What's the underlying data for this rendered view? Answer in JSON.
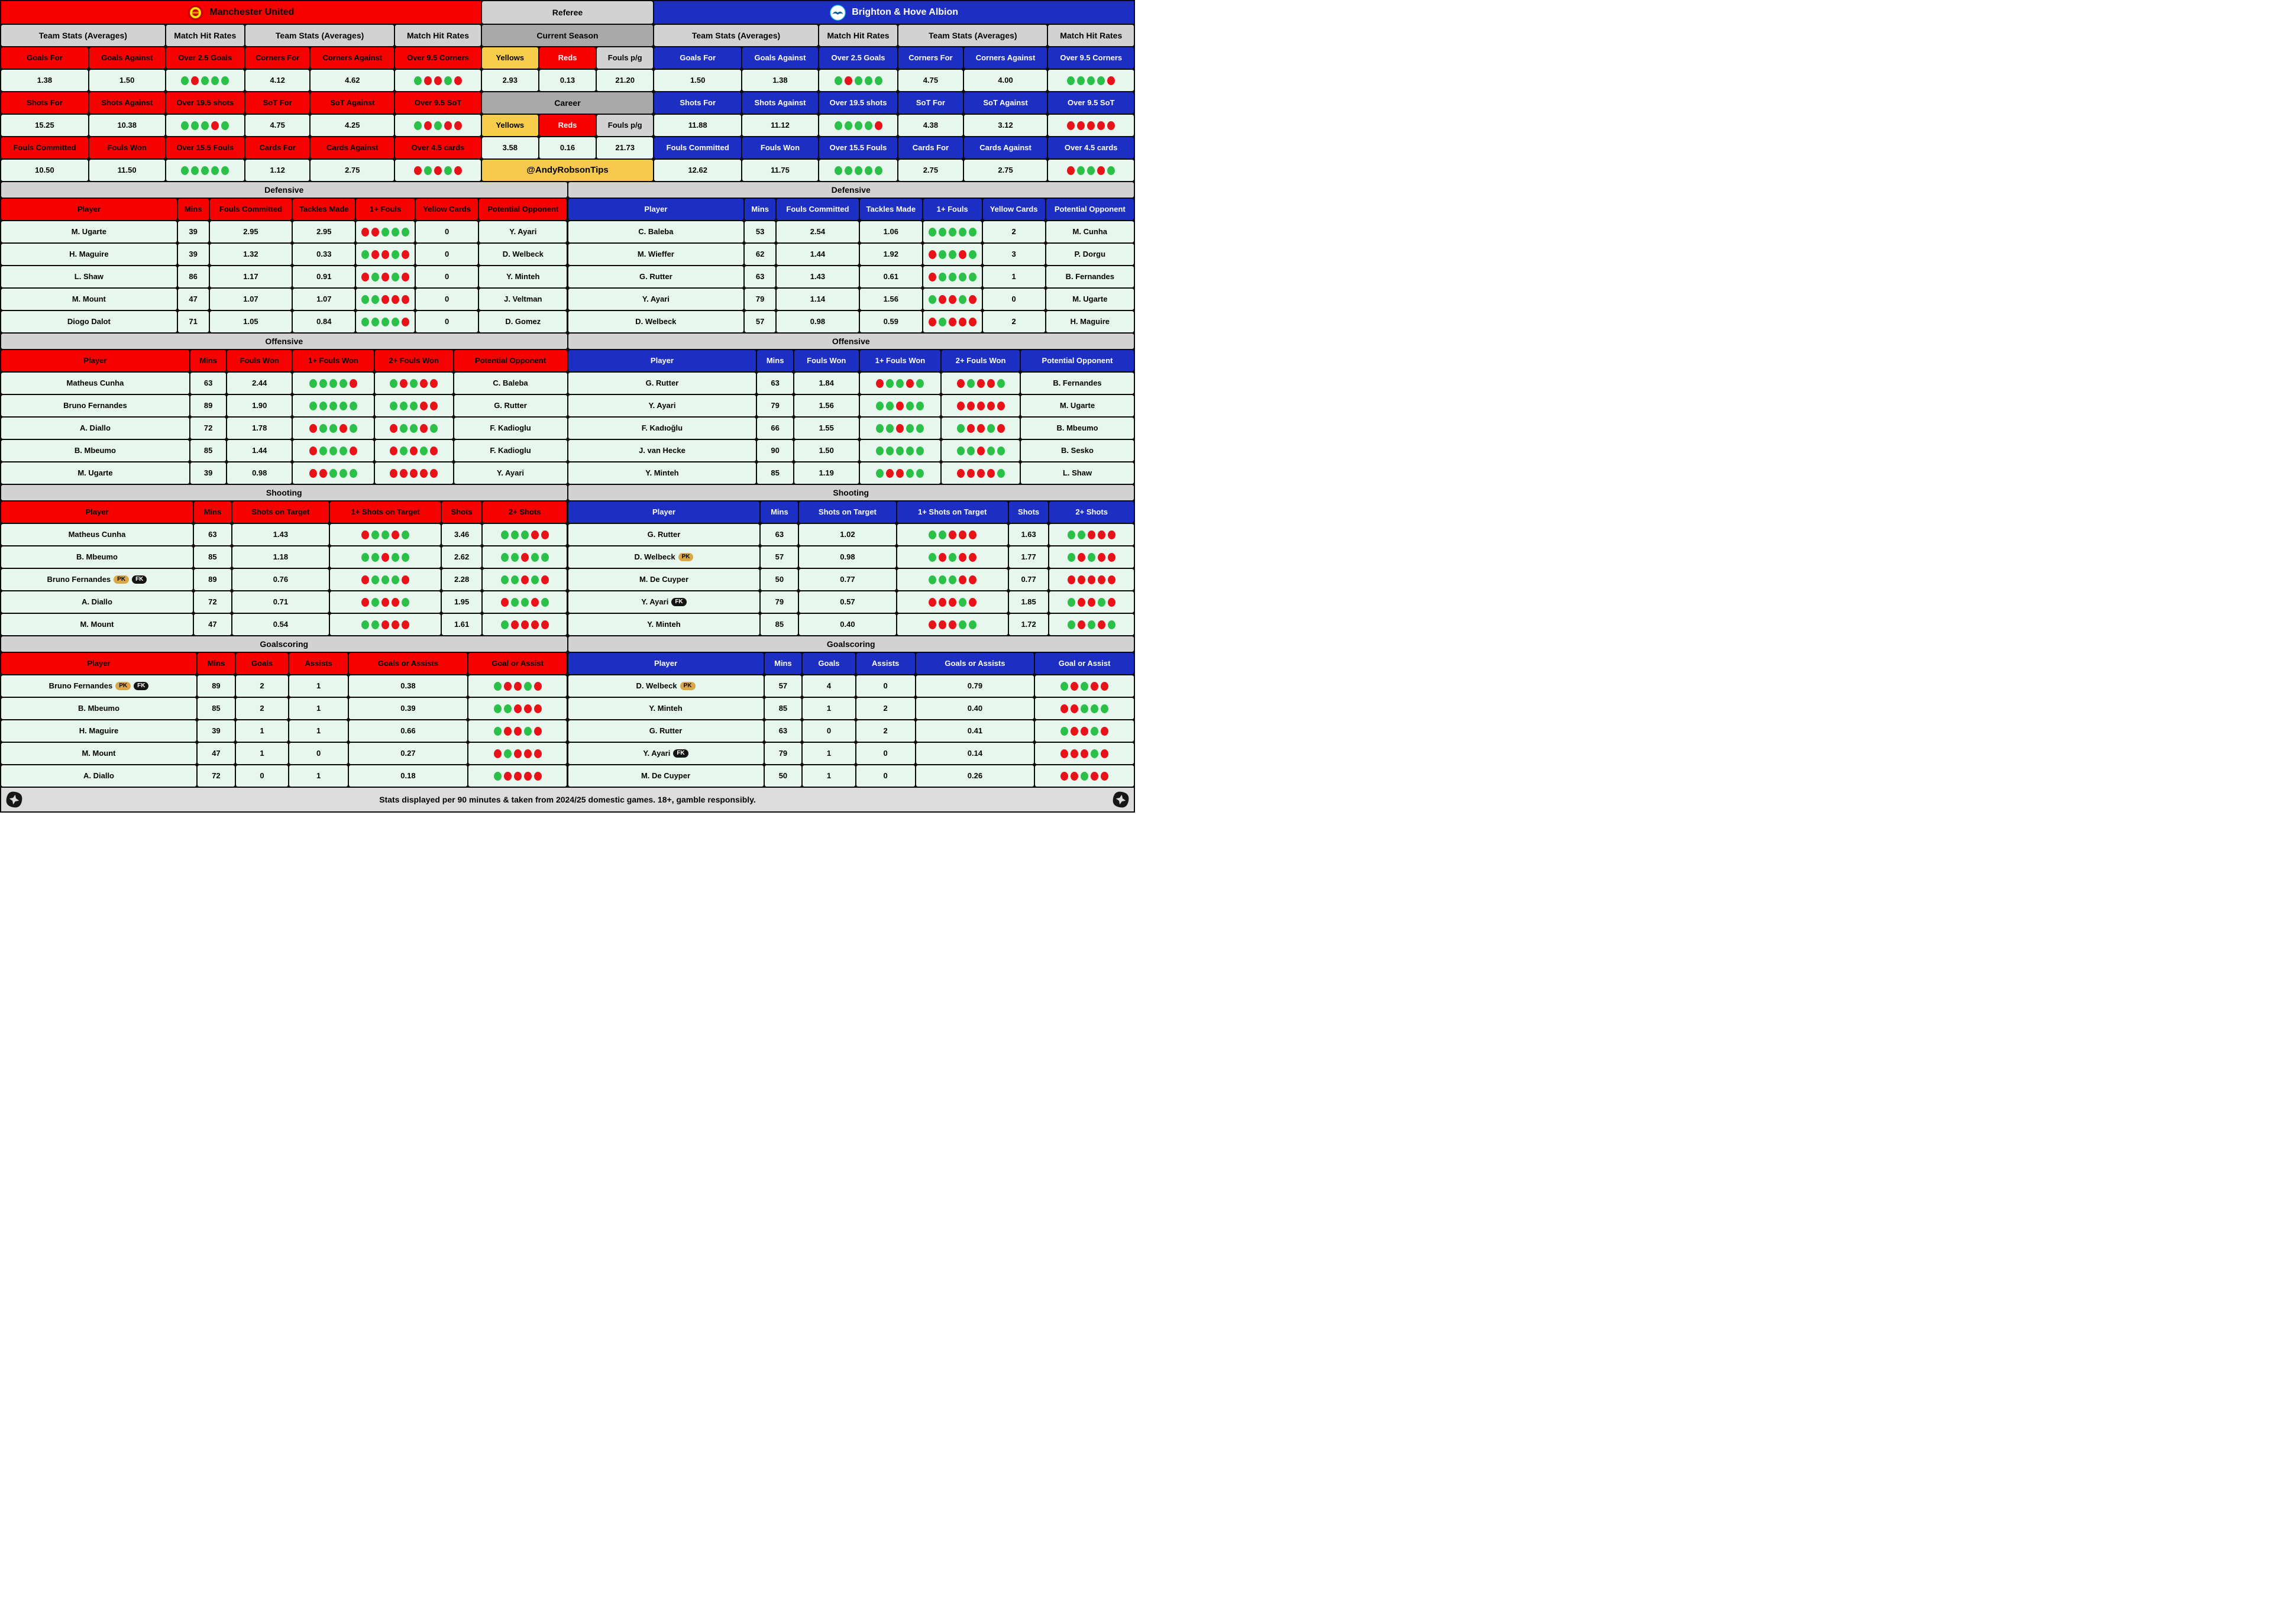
{
  "colors": {
    "home_accent": "#f70000",
    "home_header_text": "#000000",
    "away_accent": "#1c2fc2",
    "away_header_text": "#ffffff",
    "dot_green": "#2bc149",
    "dot_red": "#e91219",
    "cell_mint": "#e8f7ee",
    "section_gray": "#d2d2d2",
    "ref_dark_gray": "#a9a9a9",
    "yellow": "#f7ce4b",
    "handle_yellow": "#f7c94c"
  },
  "referee": {
    "title": "Referee",
    "handle": "@AndyRobsonTips",
    "sections": [
      {
        "title": "Current Season",
        "cols": [
          "Yellows",
          "Reds",
          "Fouls p/g"
        ],
        "values": [
          "2.93",
          "0.13",
          "21.20"
        ]
      },
      {
        "title": "Career",
        "cols": [
          "Yellows",
          "Reds",
          "Fouls p/g"
        ],
        "values": [
          "3.58",
          "0.16",
          "21.73"
        ]
      }
    ]
  },
  "home": {
    "name": "Manchester United",
    "crest": "manchester-united-crest",
    "band_headers": [
      "Team Stats (Averages)",
      "Match Hit Rates",
      "Team Stats (Averages)",
      "Match Hit Rates"
    ],
    "stat_rows": [
      {
        "labels": [
          "Goals For",
          "Goals Against",
          "Over 2.5 Goals",
          "Corners For",
          "Corners Against",
          "Over 9.5 Corners"
        ],
        "values": [
          "1.38",
          "1.50",
          "dots:GRGGG",
          "4.12",
          "4.62",
          "dots:GRRGR"
        ]
      },
      {
        "labels": [
          "Shots For",
          "Shots Against",
          "Over 19.5 shots",
          "SoT For",
          "SoT Against",
          "Over 9.5 SoT"
        ],
        "values": [
          "15.25",
          "10.38",
          "dots:GGGRG",
          "4.75",
          "4.25",
          "dots:GRGRR"
        ]
      },
      {
        "labels": [
          "Fouls Committed",
          "Fouls Won",
          "Over 15.5 Fouls",
          "Cards For",
          "Cards Against",
          "Over 4.5 cards"
        ],
        "values": [
          "10.50",
          "11.50",
          "dots:GGGGG",
          "1.12",
          "2.75",
          "dots:RGRGR"
        ]
      }
    ],
    "sections": [
      {
        "title": "Defensive",
        "layout": "defensive",
        "columns": [
          "Player",
          "Mins",
          "Fouls Committed",
          "Tackles Made",
          "1+ Fouls",
          "Yellow Cards",
          "Potential Opponent"
        ],
        "rows": [
          {
            "player": "M. Ugarte",
            "badges": [],
            "cells": [
              "39",
              "2.95",
              "2.95",
              "dots:RRGGG",
              "0",
              "Y. Ayari"
            ]
          },
          {
            "player": "H. Maguire",
            "badges": [],
            "cells": [
              "39",
              "1.32",
              "0.33",
              "dots:GRRGR",
              "0",
              "D. Welbeck"
            ]
          },
          {
            "player": "L. Shaw",
            "badges": [],
            "cells": [
              "86",
              "1.17",
              "0.91",
              "dots:RGRGR",
              "0",
              "Y. Minteh"
            ]
          },
          {
            "player": "M. Mount",
            "badges": [],
            "cells": [
              "47",
              "1.07",
              "1.07",
              "dots:GGRRR",
              "0",
              "J. Veltman"
            ]
          },
          {
            "player": "Diogo Dalot",
            "badges": [],
            "cells": [
              "71",
              "1.05",
              "0.84",
              "dots:GGGGR",
              "0",
              "D. Gomez"
            ]
          }
        ]
      },
      {
        "title": "Offensive",
        "layout": "offensive",
        "columns": [
          "Player",
          "Mins",
          "Fouls Won",
          "1+ Fouls Won",
          "2+ Fouls Won",
          "Potential Opponent"
        ],
        "rows": [
          {
            "player": "Matheus Cunha",
            "badges": [],
            "cells": [
              "63",
              "2.44",
              "dots:GGGGR",
              "dots:GRGRR",
              "C. Baleba"
            ]
          },
          {
            "player": "Bruno Fernandes",
            "badges": [],
            "cells": [
              "89",
              "1.90",
              "dots:GGGGG",
              "dots:GGGRR",
              "G. Rutter"
            ]
          },
          {
            "player": "A. Diallo",
            "badges": [],
            "cells": [
              "72",
              "1.78",
              "dots:RGGRG",
              "dots:RGGRG",
              "F. Kadioglu"
            ]
          },
          {
            "player": "B. Mbeumo",
            "badges": [],
            "cells": [
              "85",
              "1.44",
              "dots:RGGGR",
              "dots:RGRGR",
              "F. Kadioglu"
            ]
          },
          {
            "player": "M. Ugarte",
            "badges": [],
            "cells": [
              "39",
              "0.98",
              "dots:RRGGG",
              "dots:RRRRR",
              "Y. Ayari"
            ]
          }
        ]
      },
      {
        "title": "Shooting",
        "layout": "shooting",
        "columns": [
          "Player",
          "Mins",
          "Shots on Target",
          "1+ Shots on Target",
          "Shots",
          "2+ Shots"
        ],
        "rows": [
          {
            "player": "Matheus Cunha",
            "badges": [],
            "cells": [
              "63",
              "1.43",
              "dots:RGGRG",
              "3.46",
              "dots:GGGRR"
            ]
          },
          {
            "player": "B. Mbeumo",
            "badges": [],
            "cells": [
              "85",
              "1.18",
              "dots:GGRGG",
              "2.62",
              "dots:GGRGG"
            ]
          },
          {
            "player": "Bruno Fernandes",
            "badges": [
              "PK",
              "FK"
            ],
            "cells": [
              "89",
              "0.76",
              "dots:RGGGR",
              "2.28",
              "dots:GGRGR"
            ]
          },
          {
            "player": "A. Diallo",
            "badges": [],
            "cells": [
              "72",
              "0.71",
              "dots:RGRRG",
              "1.95",
              "dots:RGGRG"
            ]
          },
          {
            "player": "M. Mount",
            "badges": [],
            "cells": [
              "47",
              "0.54",
              "dots:GGRRR",
              "1.61",
              "dots:GRRRR"
            ]
          }
        ]
      },
      {
        "title": "Goalscoring",
        "layout": "goalscoring",
        "columns": [
          "Player",
          "Mins",
          "Goals",
          "Assists",
          "Goals or Assists",
          "Goal or Assist"
        ],
        "rows": [
          {
            "player": "Bruno Fernandes",
            "badges": [
              "PK",
              "FK"
            ],
            "cells": [
              "89",
              "2",
              "1",
              "0.38",
              "dots:GRRGR"
            ]
          },
          {
            "player": "B. Mbeumo",
            "badges": [],
            "cells": [
              "85",
              "2",
              "1",
              "0.39",
              "dots:GGRRR"
            ]
          },
          {
            "player": "H. Maguire",
            "badges": [],
            "cells": [
              "39",
              "1",
              "1",
              "0.66",
              "dots:GRRGR"
            ]
          },
          {
            "player": "M. Mount",
            "badges": [],
            "cells": [
              "47",
              "1",
              "0",
              "0.27",
              "dots:RGRRR"
            ]
          },
          {
            "player": "A. Diallo",
            "badges": [],
            "cells": [
              "72",
              "0",
              "1",
              "0.18",
              "dots:GRRRR"
            ]
          }
        ]
      }
    ]
  },
  "away": {
    "name": "Brighton & Hove Albion",
    "crest": "brighton-crest",
    "band_headers": [
      "Team Stats (Averages)",
      "Match Hit Rates",
      "Team Stats (Averages)",
      "Match Hit Rates"
    ],
    "stat_rows": [
      {
        "labels": [
          "Goals For",
          "Goals Against",
          "Over 2.5 Goals",
          "Corners For",
          "Corners Against",
          "Over 9.5 Corners"
        ],
        "values": [
          "1.50",
          "1.38",
          "dots:GRGGG",
          "4.75",
          "4.00",
          "dots:GGGGR"
        ]
      },
      {
        "labels": [
          "Shots For",
          "Shots Against",
          "Over 19.5 shots",
          "SoT For",
          "SoT Against",
          "Over 9.5 SoT"
        ],
        "values": [
          "11.88",
          "11.12",
          "dots:GGGGR",
          "4.38",
          "3.12",
          "dots:RRRRR"
        ]
      },
      {
        "labels": [
          "Fouls Committed",
          "Fouls Won",
          "Over 15.5 Fouls",
          "Cards For",
          "Cards Against",
          "Over 4.5 cards"
        ],
        "values": [
          "12.62",
          "11.75",
          "dots:GGGGG",
          "2.75",
          "2.75",
          "dots:RGGRG"
        ]
      }
    ],
    "sections": [
      {
        "title": "Defensive",
        "layout": "defensive",
        "columns": [
          "Player",
          "Mins",
          "Fouls Committed",
          "Tackles Made",
          "1+ Fouls",
          "Yellow Cards",
          "Potential Opponent"
        ],
        "rows": [
          {
            "player": "C. Baleba",
            "badges": [],
            "cells": [
              "53",
              "2.54",
              "1.06",
              "dots:GGGGG",
              "2",
              "M. Cunha"
            ]
          },
          {
            "player": "M. Wieffer",
            "badges": [],
            "cells": [
              "62",
              "1.44",
              "1.92",
              "dots:RGGRG",
              "3",
              "P. Dorgu"
            ]
          },
          {
            "player": "G. Rutter",
            "badges": [],
            "cells": [
              "63",
              "1.43",
              "0.61",
              "dots:RGGGG",
              "1",
              "B. Fernandes"
            ]
          },
          {
            "player": "Y. Ayari",
            "badges": [],
            "cells": [
              "79",
              "1.14",
              "1.56",
              "dots:GRRGR",
              "0",
              "M. Ugarte"
            ]
          },
          {
            "player": "D. Welbeck",
            "badges": [],
            "cells": [
              "57",
              "0.98",
              "0.59",
              "dots:RGRRR",
              "2",
              "H. Maguire"
            ]
          }
        ]
      },
      {
        "title": "Offensive",
        "layout": "offensive",
        "columns": [
          "Player",
          "Mins",
          "Fouls Won",
          "1+ Fouls Won",
          "2+ Fouls Won",
          "Potential Opponent"
        ],
        "rows": [
          {
            "player": "G. Rutter",
            "badges": [],
            "cells": [
              "63",
              "1.84",
              "dots:RGGRG",
              "dots:RGRRG",
              "B. Fernandes"
            ]
          },
          {
            "player": "Y. Ayari",
            "badges": [],
            "cells": [
              "79",
              "1.56",
              "dots:GGRGG",
              "dots:RRRRR",
              "M. Ugarte"
            ]
          },
          {
            "player": "F. Kadıoğlu",
            "badges": [],
            "cells": [
              "66",
              "1.55",
              "dots:GGRGG",
              "dots:GRRGR",
              "B. Mbeumo"
            ]
          },
          {
            "player": "J. van Hecke",
            "badges": [],
            "cells": [
              "90",
              "1.50",
              "dots:GGGGG",
              "dots:GGRGG",
              "B. Sesko"
            ]
          },
          {
            "player": "Y. Minteh",
            "badges": [],
            "cells": [
              "85",
              "1.19",
              "dots:GRRGG",
              "dots:RRRRG",
              "L. Shaw"
            ]
          }
        ]
      },
      {
        "title": "Shooting",
        "layout": "shooting",
        "columns": [
          "Player",
          "Mins",
          "Shots on Target",
          "1+ Shots on Target",
          "Shots",
          "2+ Shots"
        ],
        "rows": [
          {
            "player": "G. Rutter",
            "badges": [],
            "cells": [
              "63",
              "1.02",
              "dots:GGRRR",
              "1.63",
              "dots:GGRRR"
            ]
          },
          {
            "player": "D. Welbeck",
            "badges": [
              "PK"
            ],
            "cells": [
              "57",
              "0.98",
              "dots:GRGRR",
              "1.77",
              "dots:GRGRR"
            ]
          },
          {
            "player": "M. De Cuyper",
            "badges": [],
            "cells": [
              "50",
              "0.77",
              "dots:GGGRR",
              "0.77",
              "dots:RRRRR"
            ]
          },
          {
            "player": "Y. Ayari",
            "badges": [
              "FK"
            ],
            "cells": [
              "79",
              "0.57",
              "dots:RRRGR",
              "1.85",
              "dots:GRRGR"
            ]
          },
          {
            "player": "Y. Minteh",
            "badges": [],
            "cells": [
              "85",
              "0.40",
              "dots:RRRGG",
              "1.72",
              "dots:GRGRG"
            ]
          }
        ]
      },
      {
        "title": "Goalscoring",
        "layout": "goalscoring",
        "columns": [
          "Player",
          "Mins",
          "Goals",
          "Assists",
          "Goals or Assists",
          "Goal or Assist"
        ],
        "rows": [
          {
            "player": "D. Welbeck",
            "badges": [
              "PK"
            ],
            "cells": [
              "57",
              "4",
              "0",
              "0.79",
              "dots:GRGRR"
            ]
          },
          {
            "player": "Y. Minteh",
            "badges": [],
            "cells": [
              "85",
              "1",
              "2",
              "0.40",
              "dots:RRGGG"
            ]
          },
          {
            "player": "G. Rutter",
            "badges": [],
            "cells": [
              "63",
              "0",
              "2",
              "0.41",
              "dots:GRRGR"
            ]
          },
          {
            "player": "Y. Ayari",
            "badges": [
              "FK"
            ],
            "cells": [
              "79",
              "1",
              "0",
              "0.14",
              "dots:RRRGR"
            ]
          },
          {
            "player": "M. De Cuyper",
            "badges": [],
            "cells": [
              "50",
              "1",
              "0",
              "0.26",
              "dots:RRGRR"
            ]
          }
        ]
      }
    ]
  },
  "footer": {
    "text": "Stats displayed per 90 minutes & taken from 2024/25 domestic games. 18+, gamble responsibly."
  }
}
